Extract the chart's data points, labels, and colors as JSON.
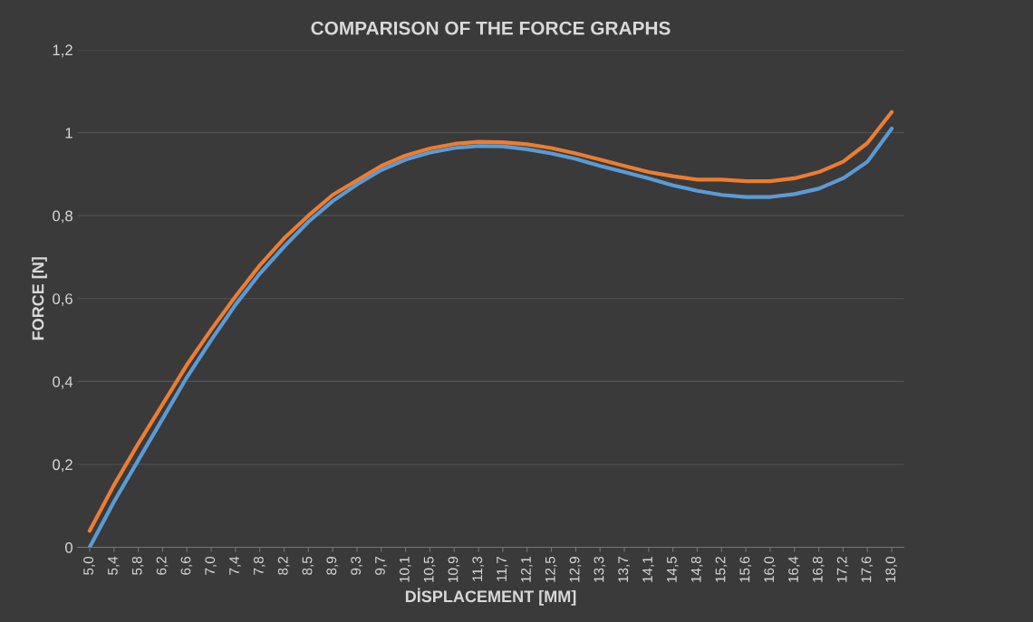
{
  "chart_data": {
    "type": "line",
    "title": "COMPARISON OF THE FORCE GRAPHS",
    "xlabel": "DİSPLACEMENT [MM]",
    "ylabel": "FORCE [N]",
    "categories": [
      "5,0",
      "5,4",
      "5,8",
      "6,2",
      "6,6",
      "7,0",
      "7,4",
      "7,8",
      "8,2",
      "8,5",
      "8,9",
      "9,3",
      "9,7",
      "10,1",
      "10,5",
      "10,9",
      "11,3",
      "11,7",
      "12,1",
      "12,5",
      "12,9",
      "13,3",
      "13,7",
      "14,1",
      "14,5",
      "14,8",
      "15,2",
      "15,6",
      "16,0",
      "16,4",
      "16,8",
      "17,2",
      "17,6",
      "18,0"
    ],
    "series": [
      {
        "color": "#5b9bd5",
        "values": [
          0,
          0.11,
          0.21,
          0.31,
          0.41,
          0.5,
          0.585,
          0.66,
          0.725,
          0.785,
          0.835,
          0.875,
          0.91,
          0.935,
          0.952,
          0.963,
          0.968,
          0.967,
          0.96,
          0.95,
          0.937,
          0.92,
          0.905,
          0.89,
          0.873,
          0.86,
          0.85,
          0.845,
          0.845,
          0.852,
          0.865,
          0.89,
          0.93,
          1.01
        ]
      },
      {
        "color": "#ed7d31",
        "values": [
          0.04,
          0.15,
          0.25,
          0.345,
          0.44,
          0.525,
          0.605,
          0.68,
          0.745,
          0.8,
          0.85,
          0.885,
          0.92,
          0.945,
          0.962,
          0.973,
          0.978,
          0.977,
          0.972,
          0.963,
          0.95,
          0.935,
          0.92,
          0.905,
          0.895,
          0.887,
          0.887,
          0.883,
          0.883,
          0.89,
          0.905,
          0.93,
          0.975,
          1.05
        ]
      }
    ],
    "ylim": [
      0,
      1.2
    ],
    "yticks": [
      0,
      {
        "value": 0.2,
        "label": "0,2"
      },
      {
        "value": 0.4,
        "label": "0,4"
      },
      {
        "value": 0.6,
        "label": "0,6"
      },
      {
        "value": 0.8,
        "label": "0,8"
      },
      1,
      {
        "value": 1.2,
        "label": "1,2"
      }
    ],
    "grid": "y",
    "marker": "none",
    "line_style": "solid"
  }
}
